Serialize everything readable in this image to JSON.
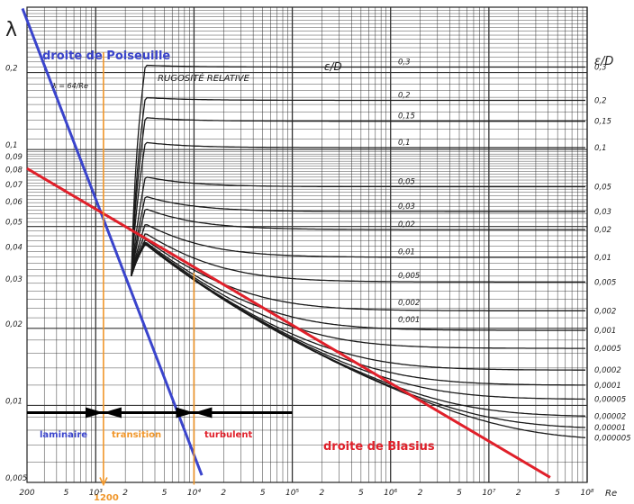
{
  "chart_data": {
    "type": "line",
    "title": "",
    "x_scale": "log",
    "y_scale": "log",
    "xlim": [
      200,
      100000000
    ],
    "ylim": [
      0.005,
      0.3
    ],
    "ylabel": "λ",
    "xlabel": "Re",
    "grid": true,
    "x_tick_labels": [
      "200",
      "5",
      "10³",
      "2",
      "5",
      "10⁴",
      "2",
      "5",
      "10⁵",
      "2",
      "5",
      "10⁶",
      "2",
      "5",
      "10⁷",
      "2",
      "5",
      "10⁸"
    ],
    "y_tick_labels": [
      "0,2",
      "0,1",
      "0,09",
      "0,08",
      "0,07",
      "0,06",
      "0,05",
      "0,04",
      "0,03",
      "0,02",
      "0,01",
      "0,005"
    ],
    "right_axis_title": "ε/D",
    "right_axis_labels": [
      "0,3",
      "0,2",
      "0,15",
      "0,1",
      "0,05",
      "0,03",
      "0,02",
      "0,01",
      "0,005",
      "0,002",
      "0,001",
      "0,0005",
      "0,0002",
      "0,0001",
      "0,00005",
      "0,00002",
      "0,00001",
      "0,000005"
    ],
    "inner_curve_labels": [
      "0,3",
      "0,2",
      "0,15",
      "0,1",
      "0,05",
      "0,03",
      "0,02",
      "0,01",
      "0,005",
      "0,002",
      "0,001"
    ],
    "roughness_values": [
      0.3,
      0.2,
      0.15,
      0.1,
      0.05,
      0.03,
      0.02,
      0.01,
      0.005,
      0.002,
      0.001,
      0.0005,
      0.0002,
      0.0001,
      5e-05,
      2e-05,
      1e-05,
      5e-06
    ],
    "annotations": {
      "rugosite": "RUGOSITÉ RELATIVE",
      "curve_header": "ε/D",
      "formula": "λ = 64/Re",
      "marker_1200": "1200",
      "laminaire": "laminaire",
      "transition": "transition",
      "turbulent": "turbulent",
      "regime_line_lambda": 0.00937
    },
    "series": [
      {
        "name": "droite de Poiseuille",
        "color": "#3a44cc",
        "x": [
          180,
          12000
        ],
        "y": [
          0.356,
          0.00533
        ]
      },
      {
        "name": "droite de Blasius",
        "color": "#e0202a",
        "x": [
          200,
          42000000
        ],
        "y": [
          0.0843,
          0.00523
        ]
      },
      {
        "name": "",
        "color": "#f0962a",
        "x": [
          1200,
          1200
        ],
        "y": [
          0.24,
          0.0049
        ]
      },
      {
        "name": "",
        "color": "#f0962a",
        "x": [
          10000,
          10000
        ],
        "y": [
          0.033,
          0.0049
        ]
      }
    ]
  }
}
